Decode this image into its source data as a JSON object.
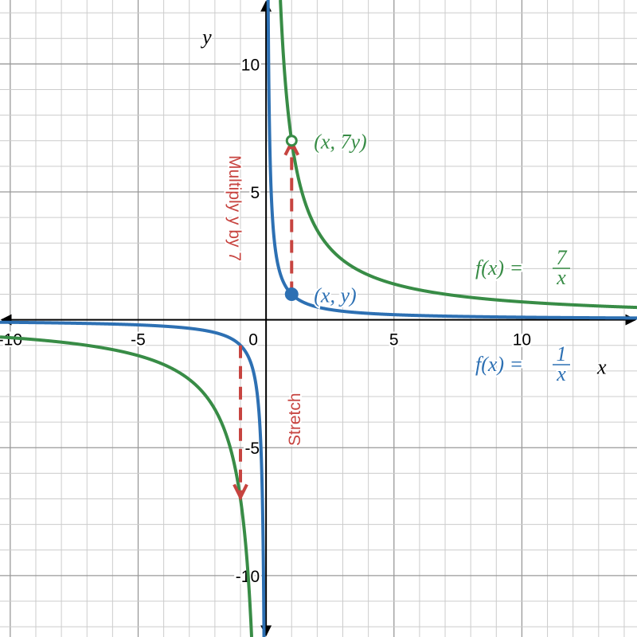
{
  "chart_data": {
    "type": "line",
    "xlabel": "x",
    "ylabel": "y",
    "xlim": [
      -10.4,
      14.5
    ],
    "ylim": [
      -12.4,
      12.5
    ],
    "grid": true,
    "minor_grid_step": 1,
    "major_grid_step": 5,
    "x_ticks": [
      -10,
      -5,
      0,
      5,
      10
    ],
    "y_ticks": [
      -10,
      -5,
      5,
      10
    ],
    "x_tick_labels": [
      "-10",
      "-5",
      "0",
      "5",
      "10"
    ],
    "y_tick_labels": [
      "-10",
      "-5",
      "5",
      "10"
    ],
    "series": [
      {
        "name": "f(x) = 1/x",
        "k": 1,
        "color": "#2d70b3",
        "label_parts": {
          "lhs": "f(x) =",
          "num": "1",
          "den": "x"
        }
      },
      {
        "name": "f(x) = 7/x",
        "k": 7,
        "color": "#388c46",
        "label_parts": {
          "lhs": "f(x) =",
          "num": "7",
          "den": "x"
        }
      }
    ],
    "points": [
      {
        "x": 1,
        "y": 1,
        "label": "(x,  y)",
        "color": "#2d70b3"
      },
      {
        "x": 1,
        "y": 7,
        "label": "(x,  7y)",
        "color": "#388c46"
      }
    ],
    "arrows": [
      {
        "from": [
          1,
          1
        ],
        "to": [
          1,
          7
        ],
        "color": "#c74440",
        "style": "dashed"
      },
      {
        "from": [
          -1,
          -1
        ],
        "to": [
          -1,
          -7
        ],
        "color": "#c74440",
        "style": "dashed"
      }
    ],
    "annotations": [
      {
        "text": "Multiply y by 7",
        "color": "#c74440"
      },
      {
        "text": "Stretch",
        "color": "#c74440"
      }
    ]
  }
}
